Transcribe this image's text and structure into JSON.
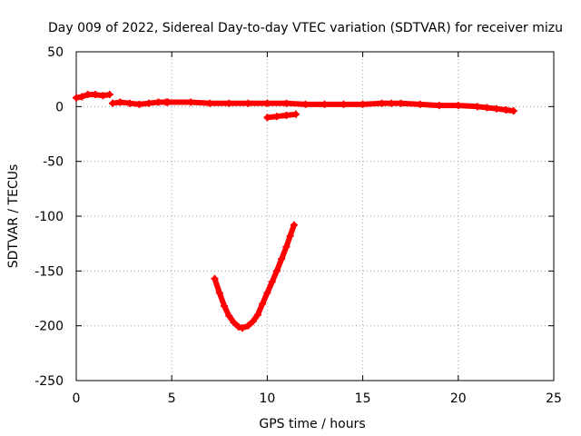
{
  "chart_data": {
    "type": "line",
    "title": "Day 009 of 2022, Sidereal Day-to-day VTEC variation (SDTVAR) for receiver mizu",
    "xlabel": "GPS time / hours",
    "ylabel": "SDTVAR / TECUs",
    "xlim": [
      0,
      25
    ],
    "ylim": [
      -250,
      50
    ],
    "xticks": [
      0,
      5,
      10,
      15,
      20,
      25
    ],
    "yticks": [
      50,
      0,
      -50,
      -100,
      -150,
      -200,
      -250
    ],
    "grid": true,
    "color": "#ff0000",
    "series": [
      {
        "name": "segment-1",
        "x": [
          0.0,
          0.3,
          0.6,
          1.0,
          1.4,
          1.75
        ],
        "y": [
          8,
          9,
          11,
          11,
          10,
          11
        ]
      },
      {
        "name": "segment-2",
        "x": [
          1.9,
          2.3,
          2.8,
          3.3,
          3.8,
          4.3,
          4.7
        ],
        "y": [
          3,
          4,
          3,
          2,
          3,
          4,
          4
        ]
      },
      {
        "name": "segment-3",
        "x": [
          4.8,
          6,
          7,
          8,
          9,
          10,
          11,
          12,
          13,
          14,
          15,
          16,
          16.5,
          17,
          18,
          19,
          20,
          21,
          21.5,
          22,
          22.5,
          22.9
        ],
        "y": [
          4,
          4,
          3,
          3,
          3,
          3,
          3,
          2,
          2,
          2,
          2,
          3,
          3,
          3,
          2,
          1,
          1,
          0,
          -1,
          -2,
          -3,
          -4
        ]
      },
      {
        "name": "segment-4",
        "x": [
          10.0,
          10.5,
          11.0,
          11.5
        ],
        "y": [
          -10,
          -9,
          -8,
          -7
        ]
      },
      {
        "name": "segment-5",
        "x": [
          7.25,
          7.5,
          7.75,
          8.0,
          8.25,
          8.5,
          8.7,
          9.0,
          9.25,
          9.5,
          9.75,
          10.0,
          10.25,
          10.5,
          10.75,
          11.0,
          11.2,
          11.4
        ],
        "y": [
          -157,
          -170,
          -182,
          -191,
          -197,
          -201,
          -202,
          -200,
          -196,
          -190,
          -180,
          -170,
          -160,
          -150,
          -139,
          -128,
          -118,
          -108
        ]
      }
    ]
  }
}
